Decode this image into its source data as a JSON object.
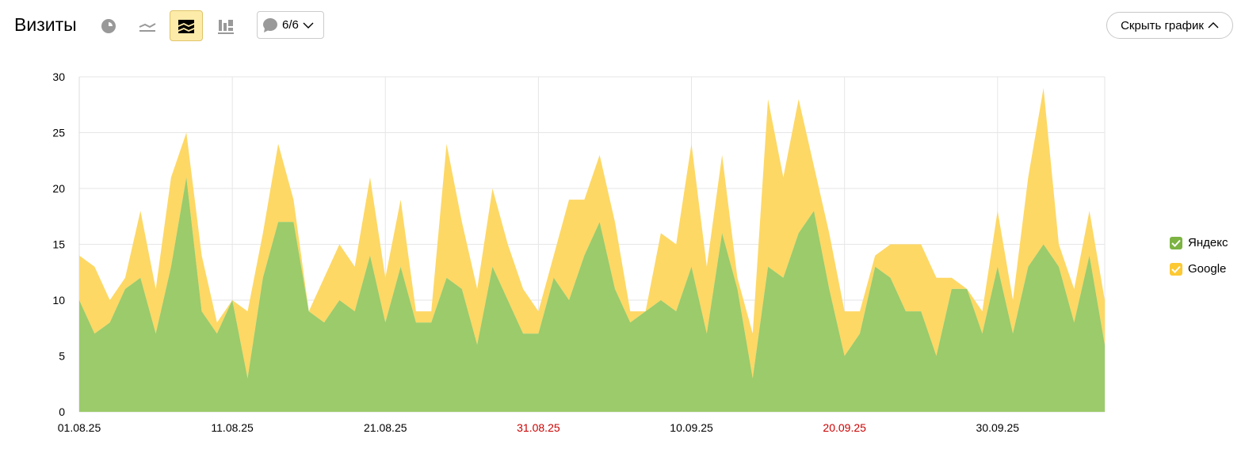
{
  "header": {
    "title": "Визиты",
    "comments_counter": "6/6",
    "hide_chart_label": "Скрыть график",
    "view_icons": [
      "pie-chart-icon",
      "line-chart-icon",
      "stacked-area-icon",
      "stacked-bar-icon"
    ],
    "active_view": "stacked-area-icon"
  },
  "colors": {
    "yandex": "#9bcb6a",
    "google": "#fdd865",
    "weekend_label": "#cc0000",
    "active_view_bg": "#fdeba9"
  },
  "chart_data": {
    "type": "area",
    "stacked": true,
    "ylim": [
      0,
      30
    ],
    "yticks": [
      0,
      5,
      10,
      15,
      20,
      25,
      30
    ],
    "grid": true,
    "legend": "right",
    "xtick_labels": [
      {
        "label": "01.08.25",
        "weekend": false
      },
      {
        "label": "11.08.25",
        "weekend": false
      },
      {
        "label": "21.08.25",
        "weekend": false
      },
      {
        "label": "31.08.25",
        "weekend": true
      },
      {
        "label": "10.09.25",
        "weekend": false
      },
      {
        "label": "20.09.25",
        "weekend": true
      },
      {
        "label": "30.09.25",
        "weekend": false
      }
    ],
    "x": [
      "01.08.25",
      "02.08.25",
      "03.08.25",
      "04.08.25",
      "05.08.25",
      "06.08.25",
      "07.08.25",
      "08.08.25",
      "09.08.25",
      "10.08.25",
      "11.08.25",
      "12.08.25",
      "13.08.25",
      "14.08.25",
      "15.08.25",
      "16.08.25",
      "17.08.25",
      "18.08.25",
      "19.08.25",
      "20.08.25",
      "21.08.25",
      "22.08.25",
      "23.08.25",
      "24.08.25",
      "25.08.25",
      "26.08.25",
      "27.08.25",
      "28.08.25",
      "29.08.25",
      "30.08.25",
      "31.08.25",
      "01.09.25",
      "02.09.25",
      "03.09.25",
      "04.09.25",
      "05.09.25",
      "06.09.25",
      "07.09.25",
      "08.09.25",
      "09.09.25",
      "10.09.25",
      "11.09.25",
      "12.09.25",
      "13.09.25",
      "14.09.25",
      "15.09.25",
      "16.09.25",
      "17.09.25",
      "18.09.25",
      "19.09.25",
      "20.09.25",
      "21.09.25",
      "22.09.25",
      "23.09.25",
      "24.09.25",
      "25.09.25",
      "26.09.25",
      "27.09.25",
      "28.09.25",
      "29.09.25",
      "30.09.25",
      "01.10.25",
      "02.10.25",
      "03.10.25",
      "04.10.25",
      "05.10.25",
      "06.10.25",
      "07.10.25"
    ],
    "series": [
      {
        "name": "Яндекс",
        "values": [
          10,
          7,
          8,
          11,
          12,
          7,
          13,
          21,
          9,
          7,
          10,
          3,
          12,
          17,
          17,
          9,
          8,
          10,
          9,
          14,
          8,
          13,
          8,
          8,
          12,
          11,
          6,
          13,
          10,
          7,
          7,
          12,
          10,
          14,
          17,
          11,
          8,
          9,
          10,
          9,
          13,
          7,
          16,
          11,
          3,
          13,
          12,
          16,
          18,
          11,
          5,
          7,
          13,
          12,
          9,
          9,
          5,
          11,
          11,
          7,
          13,
          7,
          13,
          15,
          13,
          8,
          14,
          6
        ]
      },
      {
        "name": "Google",
        "values": [
          4,
          6,
          2,
          1,
          6,
          4,
          8,
          4,
          5,
          1,
          0,
          6,
          4,
          7,
          2,
          0,
          4,
          5,
          4,
          7,
          4,
          6,
          1,
          1,
          12,
          6,
          5,
          7,
          5,
          4,
          2,
          2,
          9,
          5,
          6,
          6,
          1,
          0,
          6,
          6,
          11,
          6,
          7,
          1,
          4,
          15,
          9,
          12,
          4,
          5,
          4,
          2,
          1,
          3,
          6,
          6,
          7,
          1,
          0,
          2,
          5,
          3,
          8,
          14,
          2,
          3,
          4,
          4
        ]
      }
    ]
  }
}
